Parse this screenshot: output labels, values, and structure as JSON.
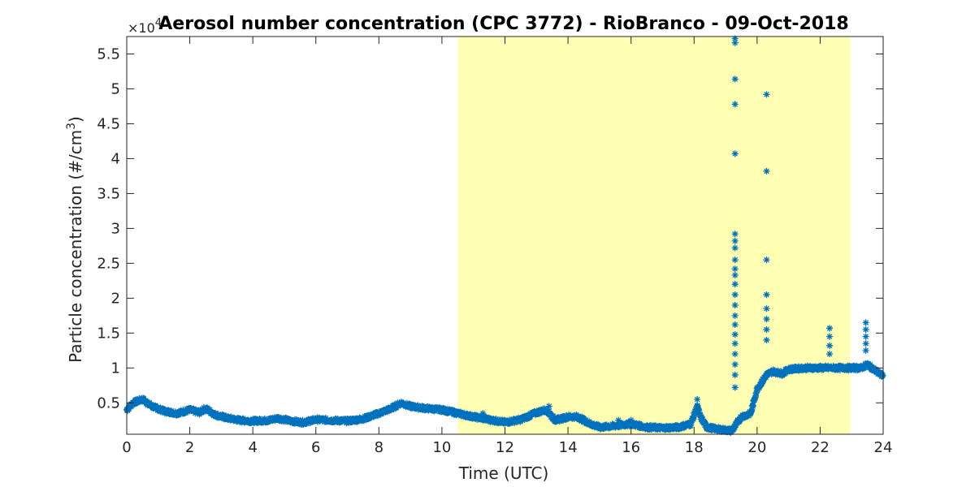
{
  "chart_data": {
    "type": "scatter",
    "title": "Aerosol number concentration (CPC 3772) - RioBranco - 09-Oct-2018",
    "xlabel": "Time (UTC)",
    "ylabel_main": "Particle concentration (#/cm",
    "ylabel_sup": "3",
    "ylabel_close": ")",
    "y_exponent_base": "×10",
    "y_exponent_power": "4",
    "xlim": [
      0,
      24
    ],
    "ylim": [
      0.05,
      5.75
    ],
    "xticks": [
      0,
      2,
      4,
      6,
      8,
      10,
      12,
      14,
      16,
      18,
      20,
      22,
      24
    ],
    "xtick_labels": [
      "0",
      "2",
      "4",
      "6",
      "8",
      "10",
      "12",
      "14",
      "16",
      "18",
      "20",
      "22",
      "24"
    ],
    "yticks": [
      0.5,
      1,
      1.5,
      2,
      2.5,
      3,
      3.5,
      4,
      4.5,
      5,
      5.5
    ],
    "ytick_labels": [
      "0.5",
      "1",
      "1.5",
      "2",
      "2.5",
      "3",
      "3.5",
      "4",
      "4.5",
      "5",
      "5.5"
    ],
    "highlight_band": {
      "x_start": 10.5,
      "x_end": 22.95,
      "color": "#FFFFB3"
    },
    "series_color": "#0072BD",
    "marker": "asterisk",
    "baseline": {
      "x": [
        0,
        0.2,
        0.5,
        0.8,
        1.2,
        1.6,
        2.0,
        2.3,
        2.5,
        2.8,
        3.2,
        3.6,
        4.0,
        4.5,
        4.8,
        5.2,
        5.6,
        6.0,
        6.5,
        7.0,
        7.5,
        8.0,
        8.4,
        8.7,
        9.0,
        9.5,
        10.0,
        10.5,
        11.0,
        11.5,
        12.0,
        12.5,
        13.0,
        13.3,
        13.6,
        14.0,
        14.3,
        14.7,
        15.0,
        15.5,
        16.0,
        16.5,
        17.0,
        17.5,
        17.9,
        18.1,
        18.2,
        18.4,
        18.8,
        19.2,
        19.5,
        19.8,
        20.0,
        20.3,
        20.5,
        20.8,
        21.0,
        21.5,
        22.0,
        22.3,
        22.6,
        23.0,
        23.3,
        23.5,
        23.7,
        24.0
      ],
      "y": [
        0.4,
        0.5,
        0.55,
        0.45,
        0.38,
        0.35,
        0.4,
        0.36,
        0.42,
        0.33,
        0.28,
        0.25,
        0.24,
        0.25,
        0.28,
        0.24,
        0.22,
        0.26,
        0.25,
        0.24,
        0.27,
        0.35,
        0.42,
        0.5,
        0.45,
        0.42,
        0.4,
        0.35,
        0.3,
        0.26,
        0.22,
        0.26,
        0.36,
        0.4,
        0.25,
        0.3,
        0.3,
        0.2,
        0.15,
        0.17,
        0.2,
        0.15,
        0.14,
        0.15,
        0.2,
        0.45,
        0.3,
        0.15,
        0.12,
        0.1,
        0.3,
        0.35,
        0.7,
        0.9,
        0.95,
        0.92,
        0.98,
        1.0,
        1.0,
        1.0,
        1.0,
        1.0,
        1.0,
        1.05,
        0.98,
        0.88
      ]
    },
    "spike_points": {
      "x": [
        19.3,
        19.3,
        19.3,
        19.3,
        19.3,
        19.3,
        19.3,
        19.3,
        19.3,
        19.3,
        19.3,
        19.3,
        19.3,
        19.3,
        19.3,
        19.3,
        19.3,
        19.3,
        19.3,
        19.3,
        19.3,
        19.3,
        20.3,
        20.3,
        20.3,
        20.3,
        20.3,
        20.3,
        20.3,
        20.3,
        18.1,
        18.1,
        22.3,
        22.3,
        22.3,
        22.3,
        23.45,
        23.45,
        23.45,
        23.45,
        23.45,
        13.4,
        13.4,
        15.6,
        16.0,
        11.3
      ],
      "y": [
        5.72,
        5.66,
        5.14,
        4.78,
        4.07,
        2.92,
        2.82,
        2.72,
        2.55,
        2.42,
        2.33,
        2.2,
        2.05,
        1.9,
        1.75,
        1.62,
        1.48,
        1.35,
        1.2,
        1.05,
        0.9,
        0.72,
        4.92,
        3.82,
        2.55,
        2.05,
        1.85,
        1.7,
        1.55,
        1.4,
        0.55,
        0.45,
        1.57,
        1.45,
        1.32,
        1.2,
        1.65,
        1.55,
        1.45,
        1.35,
        1.25,
        0.45,
        0.38,
        0.25,
        0.25,
        0.35
      ]
    }
  }
}
